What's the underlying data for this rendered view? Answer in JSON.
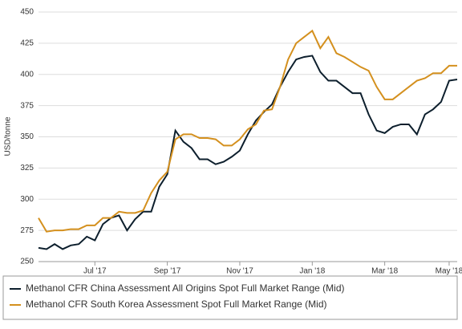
{
  "chart_data": {
    "type": "line",
    "y_label": "USD/tonne",
    "categories": [
      null,
      null,
      null,
      null,
      null,
      null,
      null,
      "Jul '17",
      null,
      null,
      null,
      null,
      null,
      null,
      null,
      null,
      "Sep '17",
      null,
      null,
      null,
      null,
      null,
      null,
      null,
      null,
      "Nov '17",
      null,
      null,
      null,
      null,
      null,
      null,
      null,
      null,
      "Jan '18",
      null,
      null,
      null,
      null,
      null,
      null,
      null,
      null,
      "Mar '18",
      null,
      null,
      null,
      null,
      null,
      null,
      null,
      "May '18",
      null
    ],
    "series": [
      {
        "name": "Methanol CFR China Assessment All Origins Spot Full Market Range (Mid)",
        "color": "#0d1f2d",
        "values": [
          261,
          260,
          264,
          260,
          263,
          264,
          270,
          267,
          280,
          285,
          287,
          275,
          284,
          290,
          290,
          310,
          320,
          355,
          346,
          341,
          332,
          332,
          328,
          330,
          334,
          339,
          352,
          363,
          370,
          376,
          390,
          402,
          412,
          414,
          415,
          402,
          395,
          395,
          390,
          385,
          385,
          368,
          355,
          353,
          358,
          360,
          360,
          352,
          368,
          372,
          378,
          395,
          396
        ]
      },
      {
        "name": "Methanol CFR South Korea Assessment Spot Full Market Range (Mid)",
        "color": "#d4901e",
        "values": [
          285,
          274,
          275,
          275,
          276,
          276,
          279,
          279,
          285,
          285,
          290,
          289,
          289,
          291,
          305,
          315,
          322,
          348,
          352,
          352,
          349,
          349,
          348,
          343,
          343,
          348,
          356,
          360,
          371,
          372,
          390,
          412,
          425,
          430,
          435,
          421,
          430,
          417,
          414,
          410,
          406,
          403,
          390,
          380,
          380,
          385,
          390,
          395,
          397,
          401,
          401,
          407,
          407
        ]
      }
    ],
    "ylim": [
      250,
      450
    ],
    "yticks": [
      250,
      275,
      300,
      325,
      350,
      375,
      400,
      425,
      450
    ],
    "grid": true
  }
}
